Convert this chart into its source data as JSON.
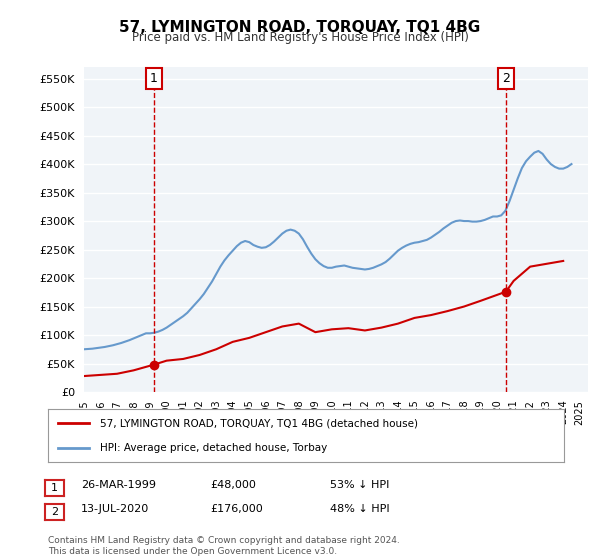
{
  "title": "57, LYMINGTON ROAD, TORQUAY, TQ1 4BG",
  "subtitle": "Price paid vs. HM Land Registry's House Price Index (HPI)",
  "ylabel_ticks": [
    "£0",
    "£50K",
    "£100K",
    "£150K",
    "£200K",
    "£250K",
    "£300K",
    "£350K",
    "£400K",
    "£450K",
    "£500K",
    "£550K"
  ],
  "ytick_values": [
    0,
    50000,
    100000,
    150000,
    200000,
    250000,
    300000,
    350000,
    400000,
    450000,
    500000,
    550000
  ],
  "ylim": [
    0,
    570000
  ],
  "xlim_start": 1995.0,
  "xlim_end": 2025.5,
  "hpi_color": "#6699cc",
  "price_color": "#cc0000",
  "marker1_date": 1999.23,
  "marker1_price": 48000,
  "marker2_date": 2020.53,
  "marker2_price": 176000,
  "legend_label_red": "57, LYMINGTON ROAD, TORQUAY, TQ1 4BG (detached house)",
  "legend_label_blue": "HPI: Average price, detached house, Torbay",
  "table_row1": [
    "1",
    "26-MAR-1999",
    "£48,000",
    "53% ↓ HPI"
  ],
  "table_row2": [
    "2",
    "13-JUL-2020",
    "£176,000",
    "48% ↓ HPI"
  ],
  "footnote": "Contains HM Land Registry data © Crown copyright and database right 2024.\nThis data is licensed under the Open Government Licence v3.0.",
  "hpi_x": [
    1995,
    1995.25,
    1995.5,
    1995.75,
    1996,
    1996.25,
    1996.5,
    1996.75,
    1997,
    1997.25,
    1997.5,
    1997.75,
    1998,
    1998.25,
    1998.5,
    1998.75,
    1999,
    1999.25,
    1999.5,
    1999.75,
    2000,
    2000.25,
    2000.5,
    2000.75,
    2001,
    2001.25,
    2001.5,
    2001.75,
    2002,
    2002.25,
    2002.5,
    2002.75,
    2003,
    2003.25,
    2003.5,
    2003.75,
    2004,
    2004.25,
    2004.5,
    2004.75,
    2005,
    2005.25,
    2005.5,
    2005.75,
    2006,
    2006.25,
    2006.5,
    2006.75,
    2007,
    2007.25,
    2007.5,
    2007.75,
    2008,
    2008.25,
    2008.5,
    2008.75,
    2009,
    2009.25,
    2009.5,
    2009.75,
    2010,
    2010.25,
    2010.5,
    2010.75,
    2011,
    2011.25,
    2011.5,
    2011.75,
    2012,
    2012.25,
    2012.5,
    2012.75,
    2013,
    2013.25,
    2013.5,
    2013.75,
    2014,
    2014.25,
    2014.5,
    2014.75,
    2015,
    2015.25,
    2015.5,
    2015.75,
    2016,
    2016.25,
    2016.5,
    2016.75,
    2017,
    2017.25,
    2017.5,
    2017.75,
    2018,
    2018.25,
    2018.5,
    2018.75,
    2019,
    2019.25,
    2019.5,
    2019.75,
    2020,
    2020.25,
    2020.5,
    2020.75,
    2021,
    2021.25,
    2021.5,
    2021.75,
    2022,
    2022.25,
    2022.5,
    2022.75,
    2023,
    2023.25,
    2023.5,
    2023.75,
    2024,
    2024.25,
    2024.5
  ],
  "hpi_y": [
    75000,
    75500,
    76000,
    77000,
    78000,
    79000,
    80500,
    82000,
    84000,
    86000,
    88500,
    91000,
    94000,
    97000,
    100000,
    103000,
    103000,
    104000,
    106000,
    109000,
    113000,
    118000,
    123000,
    128000,
    133000,
    139000,
    147000,
    155000,
    163000,
    172000,
    183000,
    194000,
    207000,
    220000,
    231000,
    240000,
    248000,
    256000,
    262000,
    265000,
    263000,
    258000,
    255000,
    253000,
    254000,
    258000,
    264000,
    271000,
    278000,
    283000,
    285000,
    283000,
    278000,
    268000,
    255000,
    243000,
    233000,
    226000,
    221000,
    218000,
    218000,
    220000,
    221000,
    222000,
    220000,
    218000,
    217000,
    216000,
    215000,
    216000,
    218000,
    221000,
    224000,
    228000,
    234000,
    241000,
    248000,
    253000,
    257000,
    260000,
    262000,
    263000,
    265000,
    267000,
    271000,
    276000,
    281000,
    287000,
    292000,
    297000,
    300000,
    301000,
    300000,
    300000,
    299000,
    299000,
    300000,
    302000,
    305000,
    308000,
    308000,
    310000,
    318000,
    335000,
    355000,
    375000,
    393000,
    405000,
    413000,
    420000,
    423000,
    418000,
    408000,
    400000,
    395000,
    392000,
    392000,
    395000,
    400000
  ],
  "price_x": [
    1995,
    1996,
    1997,
    1998,
    1999.23,
    2000,
    2001,
    2002,
    2003,
    2004,
    2005,
    2006,
    2007,
    2008,
    2009,
    2010,
    2011,
    2012,
    2013,
    2014,
    2015,
    2016,
    2017,
    2018,
    2019,
    2020.53,
    2021,
    2022,
    2023,
    2024
  ],
  "price_y": [
    28000,
    30000,
    32000,
    38000,
    48000,
    55000,
    58000,
    65000,
    75000,
    88000,
    95000,
    105000,
    115000,
    120000,
    105000,
    110000,
    112000,
    108000,
    113000,
    120000,
    130000,
    135000,
    142000,
    150000,
    160000,
    176000,
    195000,
    220000,
    225000,
    230000
  ]
}
